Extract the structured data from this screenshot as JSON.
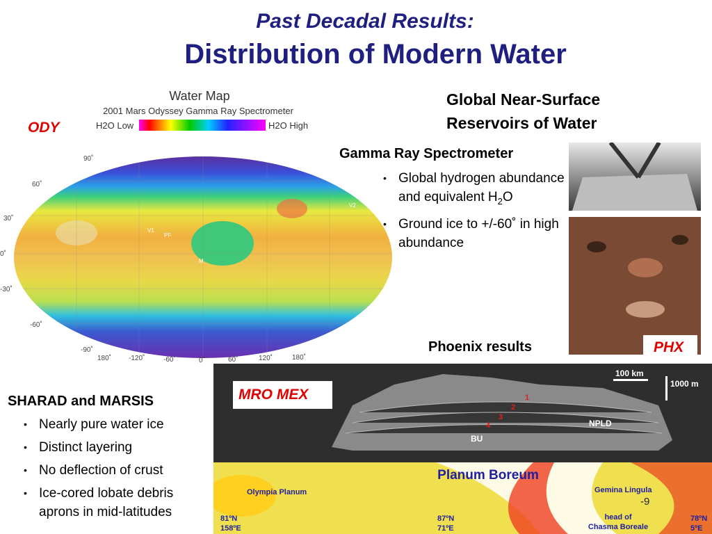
{
  "title": {
    "line1": "Past Decadal Results:",
    "line2": "Distribution of Modern Water"
  },
  "ody_label": "ODY",
  "water_map": {
    "title": "Water Map",
    "subtitle": "2001 Mars Odyssey Gamma Ray Spectrometer",
    "legend_low": "H2O Low",
    "legend_high": "H2O High",
    "lat_labels": [
      "90˚",
      "60˚",
      "30˚",
      "0˚",
      "-30˚",
      "-60˚",
      "-90˚"
    ],
    "lon_labels": [
      "180˚",
      "-120˚",
      "-60˚",
      "0˚",
      "60˚",
      "120˚",
      "180˚"
    ],
    "features": [
      "V1",
      "PF",
      "M",
      "V2"
    ]
  },
  "reservoirs_heading": [
    "Global Near-Surface",
    "Reservoirs of Water"
  ],
  "grs": {
    "heading": "Gamma Ray Spectrometer",
    "bullet1": {
      "text": "Global hydrogen abundance and equivalent H",
      "sub": "2",
      "tail": "O"
    },
    "bullet2": "Ground ice to +/-60˚  in high abundance"
  },
  "phoenix": {
    "caption": "Phoenix results",
    "label": "PHX"
  },
  "sharad": {
    "heading": "SHARAD and MARSIS",
    "bullets": [
      "Nearly pure water ice",
      "Distinct layering",
      "No deflection of crust",
      "Ice-cored lobate debris aprons in mid-latitudes"
    ]
  },
  "radar": {
    "label": "MRO MEX",
    "scale_h": "100 km",
    "scale_v": "1000 m",
    "npld": "NPLD",
    "bu": "BU",
    "layers": [
      "1",
      "2",
      "3",
      "4"
    ],
    "map_title": "Planum Boreum",
    "olympia": "Olympia Planum",
    "gemina": "Gemina Lingula",
    "coord_left": [
      "81ºN",
      "158ºE"
    ],
    "coord_mid": [
      "87ºN",
      "71ºE"
    ],
    "chasma": [
      "head of",
      "Chasma Boreale"
    ],
    "coord_right": [
      "78ºN",
      "5ºE"
    ]
  },
  "page_number": "-9"
}
